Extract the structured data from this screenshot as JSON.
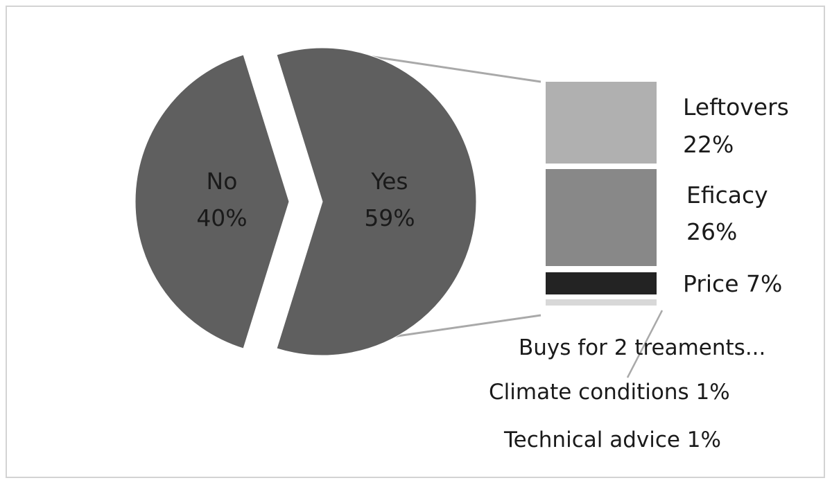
{
  "chart_data": {
    "type": "pie",
    "subtype": "bar-of-pie",
    "pie": {
      "slices": [
        {
          "label": "No",
          "value": 40,
          "value_text": "40%",
          "color": "#5f5f5f"
        },
        {
          "label": "Yes",
          "value": 59,
          "value_text": "59%",
          "color": "#5f5f5f",
          "exploded": true
        }
      ]
    },
    "bar": {
      "parent_slice": "Yes",
      "segments": [
        {
          "label": "Leftovers",
          "value": 22,
          "value_text": "22%",
          "color": "#b0b0b0"
        },
        {
          "label": "Eficacy",
          "value": 26,
          "value_text": "26%",
          "color": "#888888"
        },
        {
          "label": "Price",
          "value": 7,
          "value_text": "Price 7%",
          "color": "#232323"
        },
        {
          "label": "Buys for 2 treaments...",
          "value": null,
          "value_text": "Buys for 2 treaments...",
          "color": "#d8d8d8"
        },
        {
          "label": "Climate conditions",
          "value": 1,
          "value_text": "Climate conditions 1%",
          "color": "#d8d8d8"
        },
        {
          "label": "Technical advice",
          "value": 1,
          "value_text": "Technical advice 1%",
          "color": "#d8d8d8"
        }
      ]
    },
    "colors": {
      "connector": "#a9a9a9",
      "frame": "#d3d3d3",
      "label_text": "#1a1a1a"
    }
  }
}
